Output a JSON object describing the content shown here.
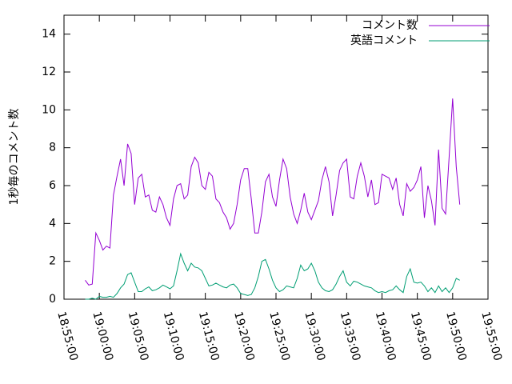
{
  "chart_data": {
    "type": "line",
    "y_label": "1秒毎のコメント数",
    "x": [
      "18:58:00",
      "18:58:30",
      "18:59:00",
      "18:59:30",
      "19:00:00",
      "19:00:30",
      "19:01:00",
      "19:01:30",
      "19:02:00",
      "19:02:30",
      "19:03:00",
      "19:03:30",
      "19:04:00",
      "19:04:30",
      "19:05:00",
      "19:05:30",
      "19:06:00",
      "19:06:30",
      "19:07:00",
      "19:07:30",
      "19:08:00",
      "19:08:30",
      "19:09:00",
      "19:09:30",
      "19:10:00",
      "19:10:30",
      "19:11:00",
      "19:11:30",
      "19:12:00",
      "19:12:30",
      "19:13:00",
      "19:13:30",
      "19:14:00",
      "19:14:30",
      "19:15:00",
      "19:15:30",
      "19:16:00",
      "19:16:30",
      "19:17:00",
      "19:17:30",
      "19:18:00",
      "19:18:30",
      "19:19:00",
      "19:19:30",
      "19:20:00",
      "19:20:30",
      "19:21:00",
      "19:21:30",
      "19:22:00",
      "19:22:30",
      "19:23:00",
      "19:23:30",
      "19:24:00",
      "19:24:30",
      "19:25:00",
      "19:25:30",
      "19:26:00",
      "19:26:30",
      "19:27:00",
      "19:27:30",
      "19:28:00",
      "19:28:30",
      "19:29:00",
      "19:29:30",
      "19:30:00",
      "19:30:30",
      "19:31:00",
      "19:31:30",
      "19:32:00",
      "19:32:30",
      "19:33:00",
      "19:33:30",
      "19:34:00",
      "19:34:30",
      "19:35:00",
      "19:35:30",
      "19:36:00",
      "19:36:30",
      "19:37:00",
      "19:37:30",
      "19:38:00",
      "19:38:30",
      "19:39:00",
      "19:39:30",
      "19:40:00",
      "19:40:30",
      "19:41:00",
      "19:41:30",
      "19:42:00",
      "19:42:30",
      "19:43:00",
      "19:43:30",
      "19:44:00",
      "19:44:30",
      "19:45:00",
      "19:45:30",
      "19:46:00",
      "19:46:30",
      "19:47:00",
      "19:47:30",
      "19:48:00",
      "19:48:30",
      "19:49:00",
      "19:49:30",
      "19:50:00",
      "19:50:30",
      "19:51:00"
    ],
    "series": [
      {
        "name": "コメント数",
        "color": "#9400d3",
        "values": [
          1.0,
          0.75,
          0.8,
          3.5,
          3.1,
          2.6,
          2.8,
          2.7,
          5.5,
          6.5,
          7.4,
          6.0,
          8.2,
          7.7,
          5.0,
          6.4,
          6.6,
          5.4,
          5.5,
          4.7,
          4.6,
          5.4,
          5.0,
          4.3,
          3.9,
          5.3,
          6.0,
          6.1,
          5.3,
          5.5,
          7.0,
          7.5,
          7.2,
          6.0,
          5.8,
          6.7,
          6.5,
          5.3,
          5.1,
          4.6,
          4.3,
          3.7,
          4.0,
          5.0,
          6.3,
          6.9,
          6.9,
          5.3,
          3.5,
          3.5,
          4.6,
          6.2,
          6.6,
          5.4,
          4.9,
          6.3,
          7.4,
          6.9,
          5.4,
          4.5,
          4.0,
          4.7,
          5.6,
          4.6,
          4.2,
          4.7,
          5.2,
          6.3,
          7.0,
          6.2,
          4.4,
          5.5,
          6.8,
          7.2,
          7.4,
          5.4,
          5.3,
          6.5,
          7.2,
          6.5,
          5.4,
          6.3,
          5.0,
          5.1,
          6.6,
          6.5,
          6.4,
          5.8,
          6.4,
          5.0,
          4.4,
          6.1,
          5.7,
          5.9,
          6.3,
          7.0,
          4.3,
          6.0,
          5.2,
          3.9,
          7.9,
          4.8,
          4.5,
          7.5,
          10.6,
          7.0,
          5.0
        ]
      },
      {
        "name": "英語コメント",
        "color": "#009e73",
        "values": [
          0.0,
          0.0,
          0.05,
          0.0,
          0.15,
          0.1,
          0.1,
          0.15,
          0.1,
          0.3,
          0.6,
          0.8,
          1.3,
          1.4,
          0.9,
          0.4,
          0.4,
          0.55,
          0.65,
          0.45,
          0.5,
          0.6,
          0.75,
          0.65,
          0.55,
          0.7,
          1.5,
          2.4,
          1.9,
          1.5,
          1.9,
          1.7,
          1.65,
          1.5,
          1.1,
          0.7,
          0.75,
          0.85,
          0.75,
          0.65,
          0.6,
          0.75,
          0.8,
          0.6,
          0.3,
          0.25,
          0.2,
          0.25,
          0.6,
          1.2,
          2.0,
          2.1,
          1.6,
          1.0,
          0.6,
          0.4,
          0.5,
          0.7,
          0.65,
          0.6,
          1.1,
          1.8,
          1.5,
          1.6,
          1.9,
          1.5,
          0.9,
          0.6,
          0.45,
          0.4,
          0.5,
          0.8,
          1.2,
          1.5,
          0.9,
          0.7,
          0.95,
          0.9,
          0.8,
          0.7,
          0.65,
          0.6,
          0.45,
          0.35,
          0.4,
          0.35,
          0.45,
          0.5,
          0.7,
          0.5,
          0.35,
          1.2,
          1.6,
          0.9,
          0.85,
          0.9,
          0.7,
          0.4,
          0.6,
          0.35,
          0.7,
          0.4,
          0.6,
          0.35,
          0.6,
          1.1,
          1.0
        ]
      }
    ],
    "xlim": [
      "18:55:00",
      "19:55:00"
    ],
    "xticks": [
      "18:55:00",
      "19:00:00",
      "19:05:00",
      "19:10:00",
      "19:15:00",
      "19:20:00",
      "19:25:00",
      "19:30:00",
      "19:35:00",
      "19:40:00",
      "19:45:00",
      "19:50:00",
      "19:55:00"
    ],
    "ylim": [
      0,
      15
    ],
    "yticks": [
      0,
      2,
      4,
      6,
      8,
      10,
      12,
      14
    ],
    "legend": "top-right"
  }
}
